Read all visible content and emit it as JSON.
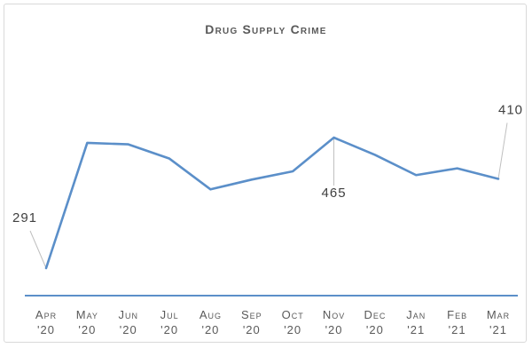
{
  "chart_data": {
    "type": "line",
    "title": "Drug Supply Crime",
    "xlabel": "",
    "ylabel": "",
    "ylim": [
      0,
      500
    ],
    "grid": false,
    "legend": "none",
    "color": "#5b8fc9",
    "categories": [
      [
        "Apr",
        "'20"
      ],
      [
        "May",
        "'20"
      ],
      [
        "Jun",
        "'20"
      ],
      [
        "Jul",
        "'20"
      ],
      [
        "Aug",
        "'20"
      ],
      [
        "Sep",
        "'20"
      ],
      [
        "Oct",
        "'20"
      ],
      [
        "Nov",
        "'20"
      ],
      [
        "Dec",
        "'20"
      ],
      [
        "Jan",
        "'21"
      ],
      [
        "Feb",
        "'21"
      ],
      [
        "Mar",
        "'21"
      ]
    ],
    "values": [
      291,
      458,
      456,
      437,
      396,
      409,
      420,
      465,
      442,
      415,
      424,
      410
    ],
    "data_labels": [
      {
        "index": 0,
        "text": "291"
      },
      {
        "index": 7,
        "text": "465"
      },
      {
        "index": 11,
        "text": "410"
      }
    ]
  }
}
